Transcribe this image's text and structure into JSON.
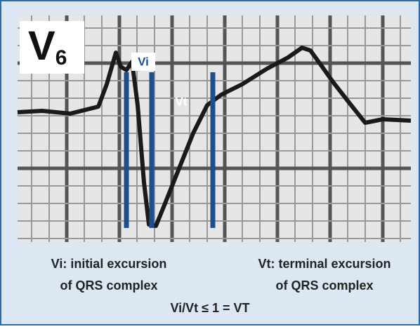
{
  "lead": {
    "letter": "V",
    "subscript": "6"
  },
  "markers": [
    {
      "label": "Vi"
    },
    {
      "label": "Vt"
    }
  ],
  "captions": [
    {
      "lines": [
        "Vi: initial excursion",
        "of QRS complex"
      ]
    },
    {
      "lines": [
        "Vt: terminal excursion",
        "of QRS complex"
      ]
    }
  ],
  "formula": "Vi/Vt ≤ 1 = VT"
}
